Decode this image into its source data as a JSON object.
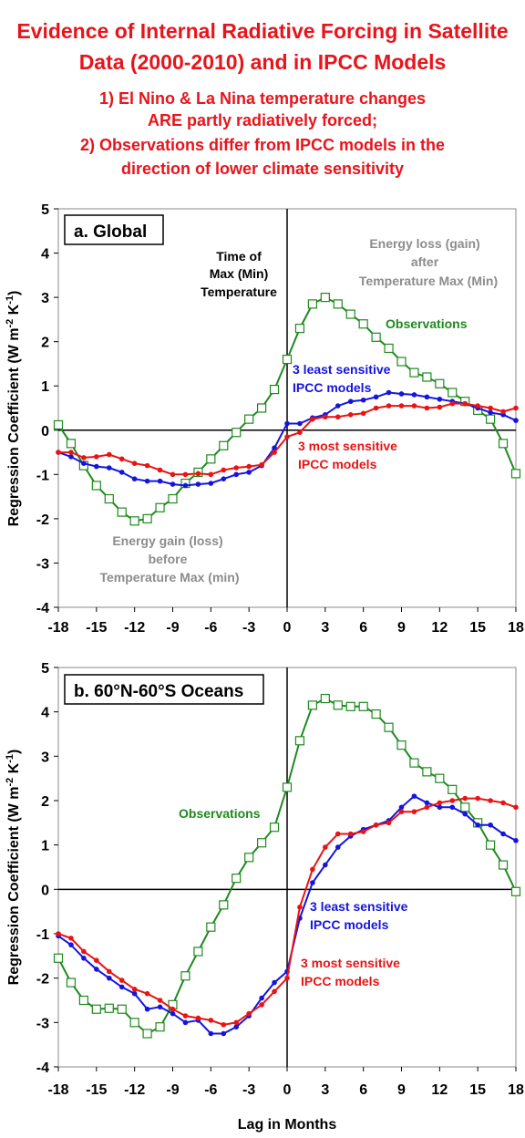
{
  "header": {
    "title_line1": "Evidence of Internal Radiative Forcing in Satellite",
    "title_line2": "Data (2000-2010)  and in IPCC Models",
    "subtitle_line1": "1) El Nino & La Nina temperature changes",
    "subtitle_line2": "ARE partly radiatively forced;",
    "subtitle_line3": "2) Observations differ from IPCC models in the",
    "subtitle_line4": "direction of lower climate sensitivity"
  },
  "colors": {
    "observations": "#1f8a1f",
    "least_sensitive": "#1414e0",
    "most_sensitive": "#e81414",
    "title": "#e8141b",
    "annotation_gray": "#8c8c8c"
  },
  "chart_data": [
    {
      "type": "line",
      "panel_label": "a. Global",
      "ylabel": "Regression Coefficient (W m-2 K-1)",
      "xlabel": "",
      "xlim": [
        -18,
        18
      ],
      "ylim": [
        -4,
        5
      ],
      "xticks": [
        "-18",
        "-15",
        "-12",
        "-9",
        "-6",
        "-3",
        "0",
        "3",
        "6",
        "9",
        "12",
        "15",
        "18"
      ],
      "yticks": [
        "-4",
        "-3",
        "-2",
        "-1",
        "0",
        "1",
        "2",
        "3",
        "4",
        "5"
      ],
      "x": [
        -18,
        -17,
        -16,
        -15,
        -14,
        -13,
        -12,
        -11,
        -10,
        -9,
        -8,
        -7,
        -6,
        -5,
        -4,
        -3,
        -2,
        -1,
        0,
        1,
        2,
        3,
        4,
        5,
        6,
        7,
        8,
        9,
        10,
        11,
        12,
        13,
        14,
        15,
        16,
        17,
        18
      ],
      "series": [
        {
          "name": "Observations",
          "color": "#1f8a1f",
          "marker": "square",
          "values": [
            0.12,
            -0.3,
            -0.8,
            -1.25,
            -1.55,
            -1.85,
            -2.05,
            -2.0,
            -1.75,
            -1.55,
            -1.2,
            -0.95,
            -0.65,
            -0.35,
            -0.05,
            0.25,
            0.5,
            0.92,
            1.6,
            2.3,
            2.85,
            3.0,
            2.85,
            2.62,
            2.4,
            2.1,
            1.85,
            1.55,
            1.3,
            1.2,
            1.05,
            0.85,
            0.65,
            0.45,
            0.25,
            -0.3,
            -0.98
          ]
        },
        {
          "name": "3 least sensitive IPCC models",
          "color": "#1414e0",
          "marker": "dot",
          "values": [
            -0.5,
            -0.6,
            -0.75,
            -0.82,
            -0.85,
            -0.95,
            -1.1,
            -1.15,
            -1.15,
            -1.22,
            -1.25,
            -1.22,
            -1.2,
            -1.1,
            -1.0,
            -0.95,
            -0.8,
            -0.4,
            0.15,
            0.15,
            0.28,
            0.35,
            0.55,
            0.65,
            0.68,
            0.75,
            0.85,
            0.82,
            0.8,
            0.75,
            0.7,
            0.65,
            0.6,
            0.5,
            0.4,
            0.35,
            0.22
          ]
        },
        {
          "name": "3 most sensitive IPCC models",
          "color": "#e81414",
          "marker": "dot",
          "values": [
            -0.5,
            -0.5,
            -0.62,
            -0.6,
            -0.55,
            -0.65,
            -0.75,
            -0.8,
            -0.9,
            -1.0,
            -1.0,
            -0.98,
            -1.0,
            -0.9,
            -0.85,
            -0.82,
            -0.78,
            -0.5,
            -0.15,
            -0.05,
            0.25,
            0.3,
            0.3,
            0.35,
            0.38,
            0.5,
            0.55,
            0.55,
            0.55,
            0.5,
            0.52,
            0.6,
            0.6,
            0.55,
            0.5,
            0.42,
            0.5
          ]
        }
      ],
      "annotations": {
        "time_of_max_1": "Time of",
        "time_of_max_2": "Max (Min)",
        "time_of_max_3": "Temperature",
        "energy_loss_1": "Energy loss (gain)",
        "energy_loss_2": "after",
        "energy_loss_3": "Temperature Max (Min)",
        "energy_gain_1": "Energy gain (loss)",
        "energy_gain_2": "before",
        "energy_gain_3": "Temperature Max (min)",
        "obs_label": "Observations",
        "least_1": "3 least sensitive",
        "least_2": "IPCC models",
        "most_1": "3 most sensitive",
        "most_2": "IPCC models"
      }
    },
    {
      "type": "line",
      "panel_label": "b. 60°N-60°S Oceans",
      "ylabel": "Regression Coefficient (W m-2 K-1)",
      "xlabel": "Lag in Months",
      "xlim": [
        -18,
        18
      ],
      "ylim": [
        -4,
        5
      ],
      "xticks": [
        "-18",
        "-15",
        "-12",
        "-9",
        "-6",
        "-3",
        "0",
        "3",
        "6",
        "9",
        "12",
        "15",
        "18"
      ],
      "yticks": [
        "-4",
        "-3",
        "-2",
        "-1",
        "0",
        "1",
        "2",
        "3",
        "4",
        "5"
      ],
      "x": [
        -18,
        -17,
        -16,
        -15,
        -14,
        -13,
        -12,
        -11,
        -10,
        -9,
        -8,
        -7,
        -6,
        -5,
        -4,
        -3,
        -2,
        -1,
        0,
        1,
        2,
        3,
        4,
        5,
        6,
        7,
        8,
        9,
        10,
        11,
        12,
        13,
        14,
        15,
        16,
        17,
        18
      ],
      "series": [
        {
          "name": "Observations",
          "color": "#1f8a1f",
          "marker": "square",
          "values": [
            -1.55,
            -2.1,
            -2.5,
            -2.7,
            -2.68,
            -2.7,
            -3.0,
            -3.25,
            -3.1,
            -2.6,
            -1.95,
            -1.4,
            -0.85,
            -0.35,
            0.25,
            0.72,
            1.05,
            1.4,
            2.3,
            3.35,
            4.15,
            4.3,
            4.15,
            4.12,
            4.12,
            3.95,
            3.65,
            3.25,
            2.85,
            2.65,
            2.5,
            2.25,
            1.85,
            1.5,
            1.0,
            0.55,
            -0.05
          ]
        },
        {
          "name": "3 least sensitive IPCC models",
          "color": "#1414e0",
          "marker": "dot",
          "values": [
            -1.05,
            -1.25,
            -1.55,
            -1.8,
            -2.0,
            -2.2,
            -2.35,
            -2.7,
            -2.65,
            -2.8,
            -3.0,
            -2.95,
            -3.25,
            -3.25,
            -3.1,
            -2.85,
            -2.45,
            -2.1,
            -1.85,
            -0.65,
            0.15,
            0.55,
            0.95,
            1.2,
            1.35,
            1.45,
            1.55,
            1.85,
            2.1,
            1.95,
            1.85,
            1.85,
            1.7,
            1.45,
            1.45,
            1.25,
            1.1
          ]
        },
        {
          "name": "3 most sensitive IPCC models",
          "color": "#e81414",
          "marker": "dot",
          "values": [
            -1.0,
            -1.1,
            -1.4,
            -1.6,
            -1.85,
            -2.05,
            -2.25,
            -2.35,
            -2.5,
            -2.7,
            -2.85,
            -2.9,
            -2.95,
            -3.05,
            -3.0,
            -2.8,
            -2.6,
            -2.3,
            -2.0,
            -0.4,
            0.45,
            0.95,
            1.25,
            1.25,
            1.3,
            1.45,
            1.5,
            1.75,
            1.75,
            1.85,
            1.95,
            2.0,
            2.05,
            2.05,
            2.0,
            1.95,
            1.85
          ]
        }
      ],
      "annotations": {
        "obs_label": "Observations",
        "least_1": "3 least sensitive",
        "least_2": "IPCC models",
        "most_1": "3 most sensitive",
        "most_2": "IPCC models"
      }
    }
  ]
}
